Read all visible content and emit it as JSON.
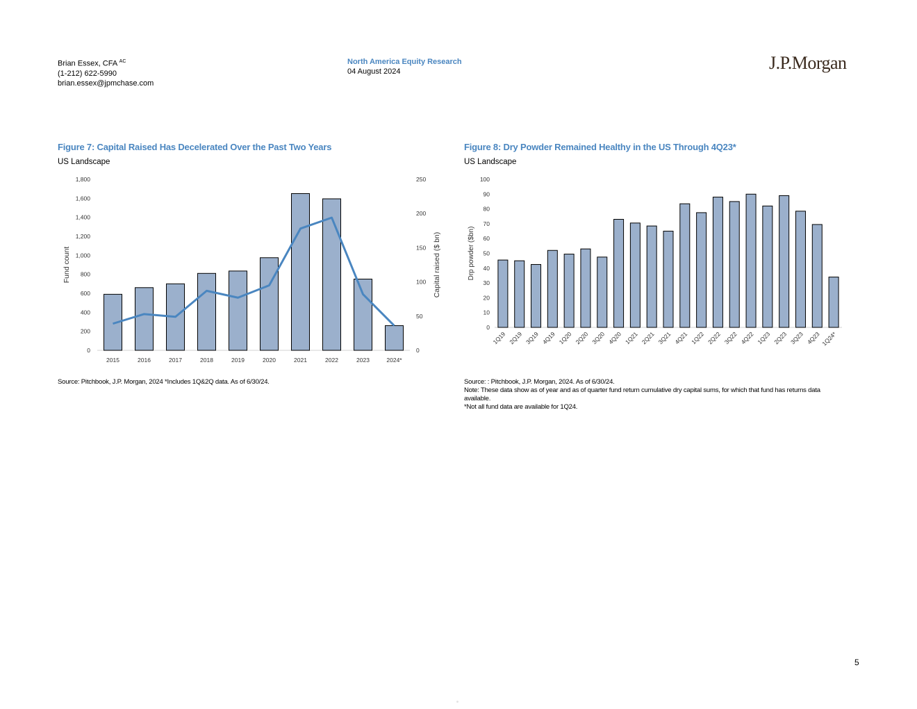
{
  "header": {
    "author_name": "Brian Essex, CFA",
    "author_sup": "AC",
    "phone": "(1-212) 622-5990",
    "email": "brian.essex@jpmchase.com",
    "department": "North America Equity Research",
    "date": "04 August 2024",
    "logo_text": "J.P.Morgan"
  },
  "figure7": {
    "title": "Figure 7: Capital Raised Has Decelerated Over the Past Two Years",
    "subtitle": "US Landscape",
    "source": "Source: Pitchbook, J.P. Morgan, 2024 *Includes 1Q&2Q data. As of 6/30/24."
  },
  "figure8": {
    "title": "Figure 8: Dry Powder Remained Healthy in the US Through 4Q23*",
    "subtitle": "US Landscape",
    "source": "Source: : Pitchbook, J.P. Morgan, 2024. As of 6/30/24.",
    "note": "Note: These data show as of year and as of quarter fund return cumulative dry capital sums, for which that fund has returns data available.",
    "footnote": "*Not all fund data are available for 1Q24."
  },
  "page_number": "5",
  "chart_data": [
    {
      "type": "bar+line",
      "categories": [
        "2015",
        "2016",
        "2017",
        "2018",
        "2019",
        "2020",
        "2021",
        "2022",
        "2023",
        "2024*"
      ],
      "series": [
        {
          "name": "Fund count",
          "kind": "bar",
          "axis": "left",
          "values": [
            590,
            660,
            700,
            810,
            835,
            975,
            1650,
            1595,
            750,
            260
          ]
        },
        {
          "name": "Capital raised ($ bn)",
          "kind": "line",
          "axis": "right",
          "values": [
            39,
            53,
            49,
            87,
            77,
            95,
            178,
            194,
            82,
            36
          ]
        }
      ],
      "ylabel": "Fund count",
      "y2label": "Capital raised ($ bn)",
      "yticks": [
        "0",
        "200",
        "400",
        "600",
        "800",
        "1,000",
        "1,200",
        "1,400",
        "1,600",
        "1,800"
      ],
      "y2ticks": [
        "0",
        "50",
        "100",
        "150",
        "200",
        "250"
      ],
      "ylim": [
        0,
        1800
      ],
      "y2lim": [
        0,
        250
      ],
      "bar_color": "#9bb0cc",
      "line_color": "#4a86c0",
      "grid": false
    },
    {
      "type": "bar",
      "categories": [
        "1Q19",
        "2Q19",
        "3Q19",
        "4Q19",
        "1Q20",
        "2Q20",
        "3Q20",
        "4Q20",
        "1Q21",
        "2Q21",
        "3Q21",
        "4Q21",
        "1Q22",
        "2Q22",
        "3Q22",
        "4Q22",
        "1Q23",
        "2Q23",
        "3Q23",
        "4Q23",
        "1Q24*"
      ],
      "values": [
        45.5,
        45,
        42.5,
        52,
        49.5,
        53,
        47.5,
        73,
        70.5,
        68.5,
        65,
        83.5,
        77.5,
        88,
        85,
        90,
        82,
        89,
        78.5,
        69.5,
        34
      ],
      "ylabel": "Drp powder ($bn)",
      "yticks": [
        "0",
        "10",
        "20",
        "30",
        "40",
        "50",
        "60",
        "70",
        "80",
        "90",
        "100"
      ],
      "ylim": [
        0,
        100
      ],
      "bar_color": "#9bb0cc",
      "grid": false
    }
  ]
}
